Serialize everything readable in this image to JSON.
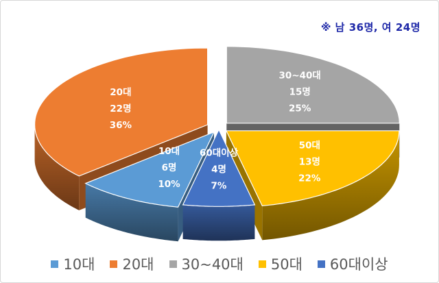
{
  "note": "※ 남 36명,  여 24명",
  "chart_data": {
    "type": "pie",
    "title": "",
    "slices": [
      {
        "category": "10대",
        "count_label": "6명",
        "percent_label": "10%",
        "count": 6,
        "percent": 10,
        "color": "#5b9bd5"
      },
      {
        "category": "20대",
        "count_label": "22명",
        "percent_label": "36%",
        "count": 22,
        "percent": 36,
        "color": "#ed7d31"
      },
      {
        "category": "30~40대",
        "count_label": "15명",
        "percent_label": "25%",
        "count": 15,
        "percent": 25,
        "color": "#a5a5a5"
      },
      {
        "category": "50대",
        "count_label": "13명",
        "percent_label": "22%",
        "count": 13,
        "percent": 22,
        "color": "#ffc000"
      },
      {
        "category": "60대이상",
        "count_label": "4명",
        "percent_label": "7%",
        "count": 4,
        "percent": 7,
        "color": "#4472c4"
      }
    ],
    "legend": [
      "10대",
      "20대",
      "30~40대",
      "50대",
      "60대이상"
    ],
    "legend_position": "bottom",
    "style": "3d-exploded"
  }
}
